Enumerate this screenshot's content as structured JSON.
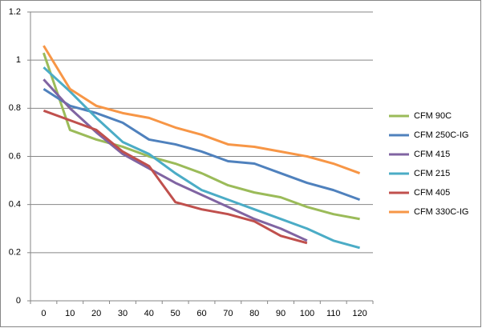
{
  "chart_data": {
    "type": "line",
    "categories": [
      "0",
      "10",
      "20",
      "30",
      "40",
      "50",
      "60",
      "70",
      "80",
      "90",
      "100",
      "110",
      "120"
    ],
    "series": [
      {
        "name": "CFM 90C",
        "color": "#9bbb59",
        "values": [
          1.03,
          0.71,
          0.67,
          0.64,
          0.6,
          0.57,
          0.53,
          0.48,
          0.45,
          0.43,
          0.39,
          0.36,
          0.34
        ]
      },
      {
        "name": "CFM 250C-IG",
        "color": "#4f81bd",
        "values": [
          0.88,
          0.81,
          0.78,
          0.74,
          0.67,
          0.65,
          0.62,
          0.58,
          0.57,
          0.53,
          0.49,
          0.46,
          0.42
        ]
      },
      {
        "name": "CFM 415",
        "color": "#8064a2",
        "values": [
          0.92,
          0.8,
          0.7,
          0.61,
          0.55,
          0.49,
          0.44,
          0.39,
          0.34,
          0.3,
          0.25,
          null,
          null
        ]
      },
      {
        "name": "CFM 215",
        "color": "#4bacc6",
        "values": [
          0.97,
          0.87,
          0.76,
          0.66,
          0.61,
          0.53,
          0.46,
          0.42,
          0.38,
          0.34,
          0.3,
          0.25,
          0.22
        ]
      },
      {
        "name": "CFM 405",
        "color": "#c0504d",
        "values": [
          0.79,
          0.75,
          0.71,
          0.62,
          0.56,
          0.41,
          0.38,
          0.36,
          0.33,
          0.27,
          0.24,
          null,
          null
        ]
      },
      {
        "name": "CFM 330C-IG",
        "color": "#f79646",
        "values": [
          1.06,
          0.88,
          0.81,
          0.78,
          0.76,
          0.72,
          0.69,
          0.65,
          0.64,
          0.62,
          0.6,
          0.57,
          0.53
        ]
      }
    ],
    "ylim": [
      0,
      1.2
    ],
    "yticks": [
      0,
      0.2,
      0.4,
      0.6,
      0.8,
      1,
      1.2
    ],
    "grid": true,
    "legend": "right"
  }
}
